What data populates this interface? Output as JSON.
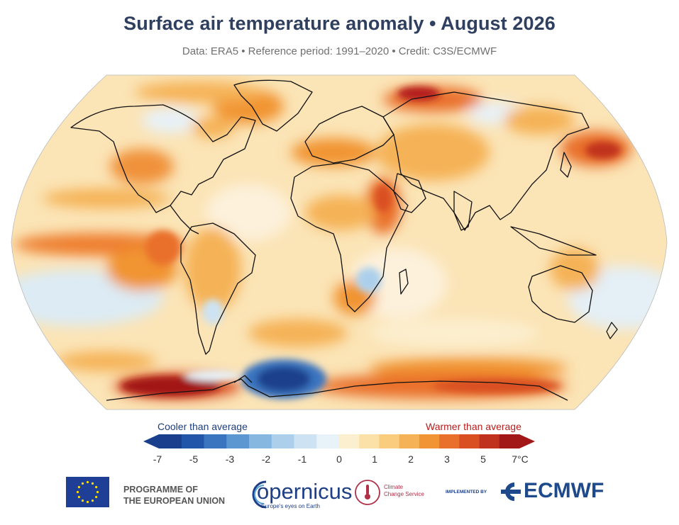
{
  "header": {
    "title": "Surface air temperature anomaly • August 2026",
    "subtitle": "Data: ERA5 • Reference period: 1991–2020 • Credit: C3S/ECMWF"
  },
  "map": {
    "projection": "Robinson",
    "variable": "surface air temperature anomaly",
    "background_color": "#fbe4b6",
    "coastline_color": "#111111"
  },
  "legend": {
    "cooler_label": "Cooler than average",
    "warmer_label": "Warmer than average",
    "tick_labels": [
      "-7",
      "-5",
      "-3",
      "-2",
      "-1",
      "0",
      "1",
      "2",
      "3",
      "5",
      "7°C"
    ],
    "cool_colors": [
      "#1a3f8c",
      "#2156a8",
      "#3b75c0",
      "#5d97d2",
      "#86b7e1",
      "#acd0ec",
      "#cde3f3",
      "#e8f3f9"
    ],
    "warm_colors": [
      "#fcefcf",
      "#fbe0a8",
      "#f9cc7e",
      "#f5b256",
      "#f19433",
      "#e9702a",
      "#d94f22",
      "#c0321e",
      "#a21818"
    ]
  },
  "footer": {
    "eu_line1": "PROGRAMME OF",
    "eu_line2": "THE EUROPEAN UNION",
    "copernicus": "opernicus",
    "copernicus_tagline": "Europe's eyes on Earth",
    "c3s_line1": "Climate",
    "c3s_line2": "Change Service",
    "implemented_by": "IMPLEMENTED BY",
    "ecmwf": "ECMWF",
    "eu_flag_color": "#1f3f96",
    "eu_star_color": "#ffdd00"
  }
}
